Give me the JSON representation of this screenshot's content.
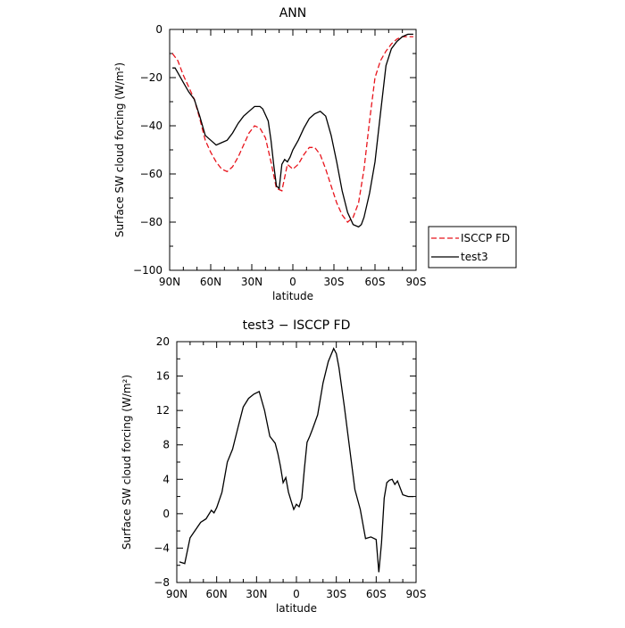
{
  "chart_data": [
    {
      "type": "line",
      "title": "ANN",
      "xlabel": "latitude",
      "ylabel": "Surface SW cloud forcing (W/m²)",
      "xlim": [
        90,
        -90
      ],
      "ylim": [
        -100,
        0
      ],
      "xticks": [
        {
          "value": 90,
          "label": "90N"
        },
        {
          "value": 60,
          "label": "60N"
        },
        {
          "value": 30,
          "label": "30N"
        },
        {
          "value": 0,
          "label": "0"
        },
        {
          "value": -30,
          "label": "30S"
        },
        {
          "value": -60,
          "label": "60S"
        },
        {
          "value": -90,
          "label": "90S"
        }
      ],
      "yticks": [
        {
          "value": 0,
          "label": "0"
        },
        {
          "value": -20,
          "label": "−20"
        },
        {
          "value": -40,
          "label": "−40"
        },
        {
          "value": -60,
          "label": "−60"
        },
        {
          "value": -80,
          "label": "−80"
        },
        {
          "value": -100,
          "label": "−100"
        }
      ],
      "legend_position": "outside-right",
      "series": [
        {
          "name": "ISCCP FD",
          "color": "#e8141c",
          "dash": "dashed",
          "x": [
            88,
            84,
            80,
            76,
            72,
            68,
            64,
            60,
            56,
            52,
            48,
            44,
            40,
            36,
            32,
            28,
            24,
            20,
            16,
            12,
            8,
            4,
            2,
            0,
            -4,
            -8,
            -12,
            -16,
            -20,
            -24,
            -28,
            -32,
            -36,
            -40,
            -44,
            -48,
            -52,
            -56,
            -60,
            -64,
            -68,
            -72,
            -76,
            -80,
            -84,
            -88
          ],
          "values": [
            -10,
            -13,
            -19,
            -24,
            -29,
            -37,
            -46,
            -51,
            -55,
            -58,
            -59,
            -57,
            -53,
            -48,
            -43,
            -40,
            -41,
            -45,
            -55,
            -66,
            -67,
            -56,
            -57,
            -58,
            -56,
            -52,
            -49,
            -49,
            -52,
            -58,
            -65,
            -72,
            -77,
            -80,
            -78,
            -72,
            -58,
            -38,
            -20,
            -13,
            -9,
            -6,
            -4,
            -3,
            -3,
            -3
          ]
        },
        {
          "name": "test3",
          "color": "#000000",
          "dash": "solid",
          "x": [
            88,
            86,
            84,
            80,
            76,
            72,
            68,
            64,
            60,
            56,
            52,
            48,
            44,
            40,
            36,
            32,
            28,
            24,
            22,
            18,
            16,
            14,
            12,
            10,
            8,
            6,
            4,
            2,
            0,
            -4,
            -8,
            -12,
            -16,
            -20,
            -24,
            -28,
            -32,
            -36,
            -40,
            -44,
            -48,
            -50,
            -52,
            -56,
            -60,
            -64,
            -68,
            -72,
            -76,
            -80,
            -84,
            -88
          ],
          "values": [
            -16,
            -16,
            -18,
            -22,
            -26,
            -29,
            -36,
            -44,
            -46,
            -48,
            -47,
            -46,
            -43,
            -39,
            -36,
            -34,
            -32,
            -32,
            -33,
            -38,
            -46,
            -56,
            -65,
            -66,
            -56,
            -54,
            -55,
            -53,
            -50,
            -46,
            -41,
            -37,
            -35,
            -34,
            -36,
            -44,
            -55,
            -67,
            -76,
            -81,
            -82,
            -81,
            -78,
            -68,
            -55,
            -35,
            -15,
            -8,
            -5,
            -3,
            -2,
            -2
          ]
        }
      ]
    },
    {
      "type": "line",
      "title": "test3 − ISCCP FD",
      "xlabel": "latitude",
      "ylabel": "Surface SW cloud forcing (W/m²)",
      "xlim": [
        90,
        -90
      ],
      "ylim": [
        -8,
        20
      ],
      "xticks": [
        {
          "value": 90,
          "label": "90N"
        },
        {
          "value": 60,
          "label": "60N"
        },
        {
          "value": 30,
          "label": "30N"
        },
        {
          "value": 0,
          "label": "0"
        },
        {
          "value": -30,
          "label": "30S"
        },
        {
          "value": -60,
          "label": "60S"
        },
        {
          "value": -90,
          "label": "90S"
        }
      ],
      "yticks": [
        {
          "value": 20,
          "label": "20"
        },
        {
          "value": 16,
          "label": "16"
        },
        {
          "value": 12,
          "label": "12"
        },
        {
          "value": 8,
          "label": "8"
        },
        {
          "value": 4,
          "label": "4"
        },
        {
          "value": 0,
          "label": "0"
        },
        {
          "value": -4,
          "label": "−4"
        },
        {
          "value": -8,
          "label": "−8"
        }
      ],
      "series": [
        {
          "color": "#000000",
          "dash": "solid",
          "x": [
            88,
            84,
            80,
            76,
            72,
            68,
            64,
            62,
            60,
            56,
            52,
            48,
            44,
            40,
            36,
            32,
            28,
            24,
            20,
            16,
            14,
            12,
            10,
            8,
            6,
            4,
            2,
            0,
            -2,
            -4,
            -6,
            -8,
            -10,
            -12,
            -16,
            -20,
            -24,
            -28,
            -30,
            -32,
            -36,
            -40,
            -44,
            -48,
            -52,
            -56,
            -60,
            -62,
            -64,
            -66,
            -68,
            -70,
            -72,
            -74,
            -76,
            -80,
            -84,
            -88
          ],
          "values": [
            -5.6,
            -5.8,
            -2.8,
            -1.9,
            -1,
            -0.6,
            0.4,
            0.1,
            0.7,
            2.5,
            6,
            7.5,
            10,
            12.4,
            13.4,
            13.9,
            14.2,
            12,
            9,
            8.2,
            7,
            5.5,
            3.6,
            4.2,
            2.5,
            1.5,
            0.5,
            1.1,
            0.8,
            1.8,
            5.2,
            8.3,
            9,
            9.8,
            11.5,
            15.2,
            17.7,
            19.2,
            18.6,
            17,
            12.5,
            7.6,
            2.8,
            0.5,
            -2.9,
            -2.7,
            -3,
            -6.8,
            -3.4,
            1.8,
            3.6,
            3.9,
            4,
            3.4,
            3.8,
            2.2,
            2,
            2
          ]
        }
      ]
    }
  ]
}
